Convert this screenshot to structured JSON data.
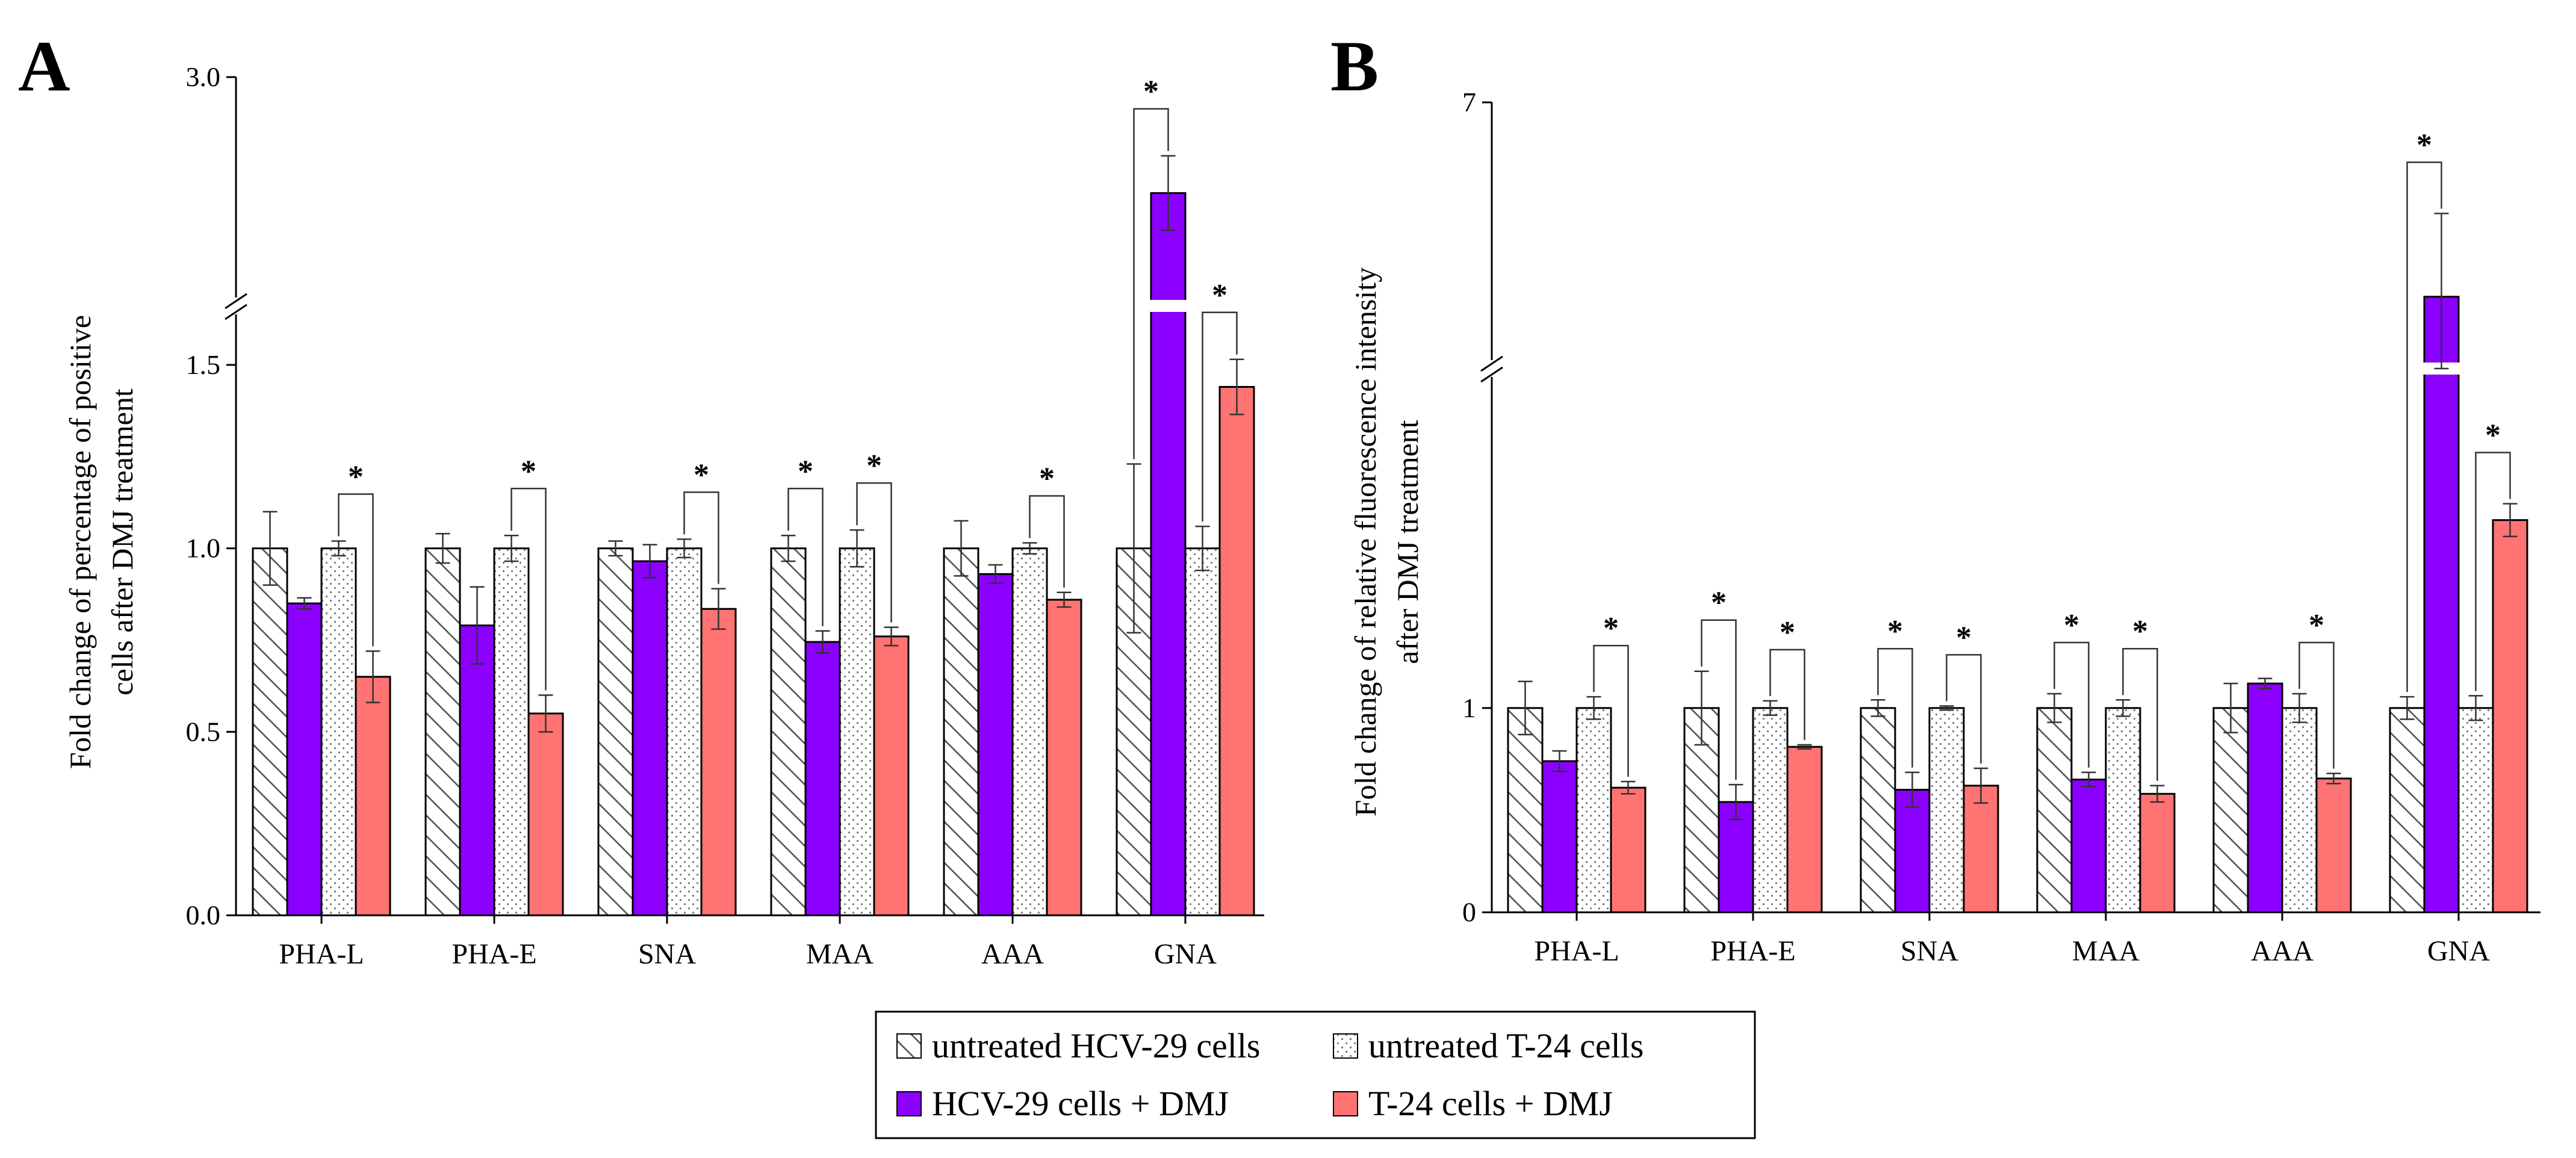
{
  "colors": {
    "hcv_dmj": "#8b00ff",
    "t24_dmj": "#ff7373",
    "untreated_fill": "#ffffff",
    "stroke": "#000000"
  },
  "legend": {
    "items": [
      {
        "label": "untreated HCV-29 cells",
        "pattern": "hatch"
      },
      {
        "label": "untreated T-24 cells",
        "pattern": "dots"
      },
      {
        "label": "HCV-29 cells + DMJ",
        "pattern": "purple"
      },
      {
        "label": "T-24 cells + DMJ",
        "pattern": "salmon"
      }
    ]
  },
  "chart_data": [
    {
      "panel": "A",
      "type": "bar",
      "ylabel_line1": "Fold change of percentage of positive",
      "ylabel_line2": "cells after DMJ treatment",
      "categories": [
        "PHA-L",
        "PHA-E",
        "SNA",
        "MAA",
        "AAA",
        "GNA"
      ],
      "yticks": [
        "0.0",
        "0.5",
        "1.0",
        "1.5",
        "3.0"
      ],
      "ylim": [
        0,
        3.0
      ],
      "axis_break": [
        1.6,
        2.5
      ],
      "series": [
        {
          "name": "untreated HCV-29 cells",
          "values": [
            1.0,
            1.0,
            1.0,
            1.0,
            1.0,
            1.0
          ],
          "errors": [
            0.1,
            0.04,
            0.02,
            0.035,
            0.075,
            0.23
          ]
        },
        {
          "name": "HCV-29 cells + DMJ",
          "values": [
            0.85,
            0.79,
            0.965,
            0.745,
            0.93,
            2.72
          ],
          "errors": [
            0.015,
            0.105,
            0.045,
            0.03,
            0.025,
            0.09
          ]
        },
        {
          "name": "untreated T-24 cells",
          "values": [
            1.0,
            1.0,
            1.0,
            1.0,
            1.0,
            1.0
          ],
          "errors": [
            0.02,
            0.035,
            0.025,
            0.05,
            0.015,
            0.06
          ]
        },
        {
          "name": "T-24 cells + DMJ",
          "values": [
            0.65,
            0.55,
            0.835,
            0.76,
            0.86,
            1.44
          ],
          "errors": [
            0.07,
            0.05,
            0.055,
            0.025,
            0.02,
            0.075
          ]
        }
      ],
      "significance": [
        {
          "category": 0,
          "pair": "T24"
        },
        {
          "category": 1,
          "pair": "T24"
        },
        {
          "category": 2,
          "pair": "T24"
        },
        {
          "category": 3,
          "pair": "HCV"
        },
        {
          "category": 3,
          "pair": "T24"
        },
        {
          "category": 4,
          "pair": "T24"
        },
        {
          "category": 5,
          "pair": "HCV"
        },
        {
          "category": 5,
          "pair": "T24"
        }
      ],
      "star_label": "*"
    },
    {
      "panel": "B",
      "type": "bar",
      "ylabel_line1": "Fold change of relative fluorescence intensity",
      "ylabel_line2": "after DMJ treatment",
      "categories": [
        "PHA-L",
        "PHA-E",
        "SNA",
        "MAA",
        "AAA",
        "GNA"
      ],
      "yticks": [
        "0",
        "1",
        "7"
      ],
      "ylim": [
        0,
        7
      ],
      "axis_break": [
        2.6,
        5.2
      ],
      "series": [
        {
          "name": "untreated HCV-29 cells",
          "values": [
            1.0,
            1.0,
            1.0,
            1.0,
            1.0,
            1.0
          ],
          "errors": [
            0.13,
            0.18,
            0.04,
            0.07,
            0.12,
            0.055
          ]
        },
        {
          "name": "HCV-29 cells + DMJ",
          "values": [
            0.74,
            0.54,
            0.6,
            0.65,
            1.12,
            5.6
          ],
          "errors": [
            0.05,
            0.085,
            0.085,
            0.035,
            0.025,
            0.6
          ]
        },
        {
          "name": "untreated T-24 cells",
          "values": [
            1.0,
            1.0,
            1.0,
            1.0,
            1.0,
            1.0
          ],
          "errors": [
            0.055,
            0.035,
            0.01,
            0.04,
            0.07,
            0.06
          ]
        },
        {
          "name": "T-24 cells + DMJ",
          "values": [
            0.61,
            0.81,
            0.62,
            0.58,
            0.655,
            1.92
          ],
          "errors": [
            0.03,
            0.01,
            0.085,
            0.04,
            0.025,
            0.08
          ]
        }
      ],
      "significance": [
        {
          "category": 0,
          "pair": "T24"
        },
        {
          "category": 1,
          "pair": "HCV"
        },
        {
          "category": 1,
          "pair": "T24"
        },
        {
          "category": 2,
          "pair": "HCV"
        },
        {
          "category": 2,
          "pair": "T24"
        },
        {
          "category": 3,
          "pair": "HCV"
        },
        {
          "category": 3,
          "pair": "T24"
        },
        {
          "category": 4,
          "pair": "T24"
        },
        {
          "category": 5,
          "pair": "HCV"
        },
        {
          "category": 5,
          "pair": "T24"
        }
      ],
      "star_label": "*"
    }
  ]
}
